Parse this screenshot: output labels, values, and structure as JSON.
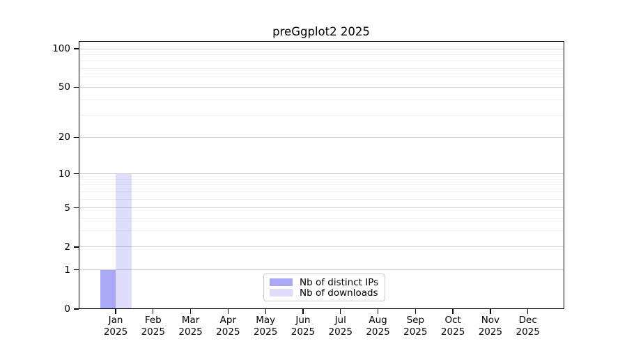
{
  "chart_data": {
    "type": "bar",
    "title": "preGgplot2 2025",
    "categories": [
      {
        "month": "Jan",
        "year": "2025"
      },
      {
        "month": "Feb",
        "year": "2025"
      },
      {
        "month": "Mar",
        "year": "2025"
      },
      {
        "month": "Apr",
        "year": "2025"
      },
      {
        "month": "May",
        "year": "2025"
      },
      {
        "month": "Jun",
        "year": "2025"
      },
      {
        "month": "Jul",
        "year": "2025"
      },
      {
        "month": "Aug",
        "year": "2025"
      },
      {
        "month": "Sep",
        "year": "2025"
      },
      {
        "month": "Oct",
        "year": "2025"
      },
      {
        "month": "Nov",
        "year": "2025"
      },
      {
        "month": "Dec",
        "year": "2025"
      }
    ],
    "series": [
      {
        "name": "Nb of distinct IPs",
        "color": "rgba(0,0,230,0.34)",
        "values": [
          1,
          0,
          0,
          0,
          0,
          0,
          0,
          0,
          0,
          0,
          0,
          0
        ]
      },
      {
        "name": "Nb of downloads",
        "color": "rgba(0,0,230,0.13)",
        "values": [
          10,
          0,
          0,
          0,
          0,
          0,
          0,
          0,
          0,
          0,
          0,
          0
        ]
      }
    ],
    "y_axis": {
      "scale": "log1p",
      "ticks": [
        0,
        1,
        2,
        5,
        10,
        20,
        50,
        100
      ],
      "minor_ticks": [
        3,
        4,
        6,
        7,
        8,
        9,
        30,
        40,
        60,
        70,
        80,
        90
      ],
      "ylim": [
        0,
        100
      ]
    },
    "grid": "horizontal",
    "legend_position": "lower center"
  }
}
